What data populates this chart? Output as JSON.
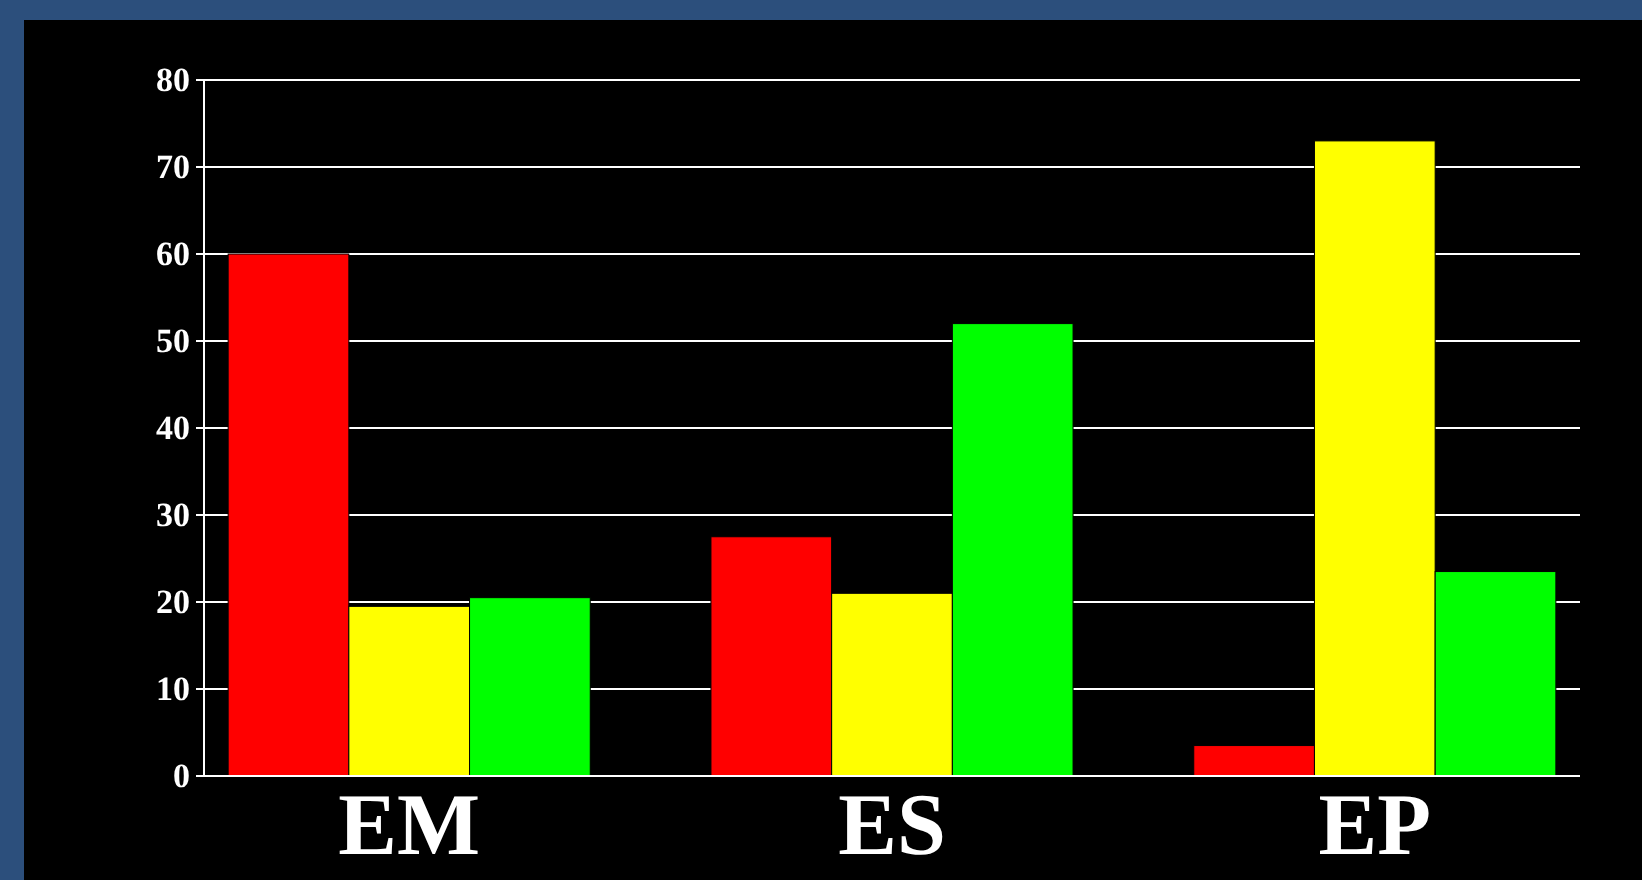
{
  "chart_data": {
    "type": "bar",
    "categories": [
      "EM",
      "ES",
      "EP"
    ],
    "series": [
      {
        "color": "#ff0000",
        "values": [
          60,
          27.5,
          3.5
        ]
      },
      {
        "color": "#ffff00",
        "values": [
          19.5,
          21,
          73
        ]
      },
      {
        "color": "#00ff00",
        "values": [
          20.5,
          52,
          23.5
        ]
      }
    ],
    "ylim": [
      0,
      80
    ],
    "yticks": [
      0,
      10,
      20,
      30,
      40,
      50,
      60,
      70,
      80
    ],
    "grid": "y"
  }
}
